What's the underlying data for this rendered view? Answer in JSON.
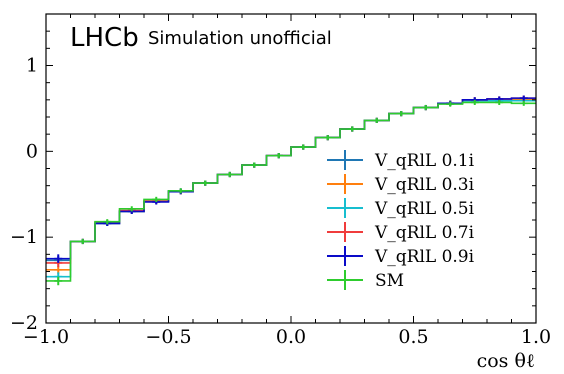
{
  "chart_data": {
    "type": "line",
    "xlabel": "cos θℓ",
    "ylabel": "",
    "xlim": [
      -1.0,
      1.0
    ],
    "ylim": [
      -2.0,
      1.6
    ],
    "xticks": [
      "−1.0",
      "−0.5",
      "0.0",
      "0.5",
      "1.0"
    ],
    "yticks": [
      "−2",
      "−1",
      "0",
      "1"
    ],
    "legend_position": "lower-right",
    "annotation": {
      "brand": "LHCb",
      "subtitle": "Simulation unofficial"
    },
    "bin_edges": [
      -1.0,
      -0.9,
      -0.8,
      -0.7,
      -0.6,
      -0.5,
      -0.4,
      -0.3,
      -0.2,
      -0.1,
      0.0,
      0.1,
      0.2,
      0.3,
      0.4,
      0.5,
      0.6,
      0.7,
      0.8,
      0.9,
      1.0
    ],
    "series": [
      {
        "name": "V_qRlL 0.1i",
        "color": "#1f77b4",
        "values": [
          -1.27,
          -1.05,
          -0.84,
          -0.7,
          -0.58,
          -0.46,
          -0.37,
          -0.27,
          -0.16,
          -0.05,
          0.05,
          0.16,
          0.26,
          0.36,
          0.44,
          0.51,
          0.56,
          0.6,
          0.6,
          0.61
        ],
        "errors": [
          0.05,
          0.03,
          0.03,
          0.03,
          0.03,
          0.03,
          0.03,
          0.03,
          0.03,
          0.03,
          0.03,
          0.03,
          0.03,
          0.03,
          0.03,
          0.03,
          0.03,
          0.03,
          0.03,
          0.03
        ]
      },
      {
        "name": "V_qRlL 0.3i",
        "color": "#ff7f0e",
        "values": [
          -1.38,
          -1.05,
          -0.84,
          -0.7,
          -0.58,
          -0.47,
          -0.37,
          -0.27,
          -0.16,
          -0.05,
          0.05,
          0.16,
          0.26,
          0.36,
          0.44,
          0.51,
          0.56,
          0.59,
          0.6,
          0.6
        ],
        "errors": [
          0.05,
          0.03,
          0.03,
          0.03,
          0.03,
          0.03,
          0.03,
          0.03,
          0.03,
          0.03,
          0.03,
          0.03,
          0.03,
          0.03,
          0.03,
          0.03,
          0.03,
          0.03,
          0.03,
          0.03
        ]
      },
      {
        "name": "V_qRlL 0.5i",
        "color": "#17becf",
        "values": [
          -1.46,
          -1.05,
          -0.84,
          -0.7,
          -0.58,
          -0.47,
          -0.37,
          -0.27,
          -0.16,
          -0.05,
          0.05,
          0.16,
          0.26,
          0.36,
          0.44,
          0.51,
          0.56,
          0.59,
          0.59,
          0.59
        ],
        "errors": [
          0.05,
          0.03,
          0.03,
          0.03,
          0.03,
          0.03,
          0.03,
          0.03,
          0.03,
          0.03,
          0.03,
          0.03,
          0.03,
          0.03,
          0.03,
          0.03,
          0.03,
          0.03,
          0.03,
          0.03
        ]
      },
      {
        "name": "V_qRlL 0.7i",
        "color": "#f03c3c",
        "values": [
          -1.3,
          -1.05,
          -0.83,
          -0.69,
          -0.58,
          -0.47,
          -0.37,
          -0.27,
          -0.16,
          -0.05,
          0.05,
          0.16,
          0.26,
          0.36,
          0.44,
          0.51,
          0.56,
          0.6,
          0.61,
          0.62
        ],
        "errors": [
          0.05,
          0.03,
          0.03,
          0.03,
          0.03,
          0.03,
          0.03,
          0.03,
          0.03,
          0.03,
          0.03,
          0.03,
          0.03,
          0.03,
          0.03,
          0.03,
          0.03,
          0.03,
          0.03,
          0.03
        ]
      },
      {
        "name": "V_qRlL 0.9i",
        "color": "#0a0ac8",
        "values": [
          -1.25,
          -1.05,
          -0.84,
          -0.7,
          -0.59,
          -0.47,
          -0.37,
          -0.27,
          -0.16,
          -0.05,
          0.05,
          0.16,
          0.26,
          0.36,
          0.44,
          0.51,
          0.56,
          0.6,
          0.61,
          0.62
        ],
        "errors": [
          0.05,
          0.03,
          0.03,
          0.03,
          0.03,
          0.03,
          0.03,
          0.03,
          0.03,
          0.03,
          0.03,
          0.03,
          0.03,
          0.03,
          0.03,
          0.03,
          0.03,
          0.03,
          0.03,
          0.03
        ]
      },
      {
        "name": "SM",
        "color": "#2ecc2e",
        "values": [
          -1.51,
          -1.05,
          -0.82,
          -0.67,
          -0.56,
          -0.46,
          -0.37,
          -0.27,
          -0.16,
          -0.05,
          0.05,
          0.16,
          0.26,
          0.36,
          0.44,
          0.51,
          0.55,
          0.57,
          0.57,
          0.56
        ],
        "errors": [
          0.05,
          0.03,
          0.03,
          0.03,
          0.03,
          0.03,
          0.03,
          0.03,
          0.03,
          0.03,
          0.03,
          0.03,
          0.03,
          0.03,
          0.03,
          0.03,
          0.03,
          0.03,
          0.03,
          0.03
        ]
      }
    ]
  }
}
